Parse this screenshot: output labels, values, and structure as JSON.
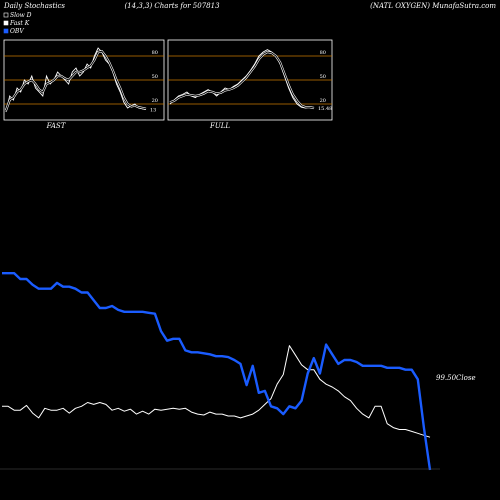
{
  "header": {
    "left": "Daily Stochastics",
    "mid": "(14,3,3) Charts for 507813",
    "right": "(NATL OXYGEN) MunafaSutra.com"
  },
  "legend": [
    {
      "label": "Slow  D",
      "color": "#000000",
      "border": "#ffffff"
    },
    {
      "label": "Fast K",
      "color": "#ffffff",
      "border": "#ffffff"
    },
    {
      "label": "OBV",
      "color": "#1a5cff",
      "border": "#1a5cff"
    }
  ],
  "colors": {
    "background": "#000000",
    "price": "#ffffff",
    "obv": "#1a5cff",
    "level": "#c87800",
    "panel_border": "#ffffff"
  },
  "chart_data": [
    {
      "type": "line",
      "panel": "FAST",
      "title": "FAST",
      "ylim": [
        0,
        100
      ],
      "ticks": [
        20,
        50,
        80
      ],
      "levels": [
        20,
        50,
        80
      ],
      "last_value_label": "13",
      "series": [
        {
          "name": "Fast K",
          "values": [
            10,
            30,
            25,
            40,
            35,
            50,
            45,
            55,
            40,
            35,
            30,
            55,
            45,
            50,
            60,
            55,
            50,
            45,
            60,
            65,
            55,
            60,
            70,
            65,
            80,
            90,
            85,
            75,
            70,
            60,
            45,
            35,
            22,
            15,
            18,
            20,
            15,
            14,
            13
          ]
        },
        {
          "name": "Slow  D",
          "values": [
            12,
            25,
            28,
            35,
            38,
            45,
            48,
            50,
            45,
            38,
            35,
            45,
            47,
            50,
            55,
            55,
            52,
            50,
            55,
            60,
            60,
            62,
            65,
            68,
            75,
            85,
            86,
            80,
            72,
            62,
            50,
            40,
            28,
            20,
            17,
            18,
            16,
            15,
            14
          ]
        }
      ]
    },
    {
      "type": "line",
      "panel": "FULL",
      "title": "FULL",
      "ylim": [
        0,
        100
      ],
      "ticks": [
        20,
        50,
        80
      ],
      "levels": [
        20,
        50,
        80
      ],
      "last_value_label": "15.48",
      "series": [
        {
          "name": "Fast K",
          "values": [
            20,
            25,
            30,
            32,
            35,
            30,
            28,
            32,
            35,
            38,
            35,
            30,
            35,
            40,
            38,
            42,
            45,
            50,
            55,
            62,
            70,
            80,
            85,
            88,
            85,
            80,
            70,
            55,
            40,
            28,
            20,
            16,
            15,
            16,
            15
          ]
        },
        {
          "name": "Slow  D",
          "values": [
            22,
            24,
            28,
            30,
            32,
            31,
            30,
            31,
            33,
            36,
            35,
            33,
            34,
            37,
            38,
            40,
            43,
            48,
            53,
            60,
            67,
            76,
            82,
            85,
            84,
            80,
            72,
            58,
            44,
            32,
            24,
            18,
            16,
            16,
            15
          ]
        }
      ]
    },
    {
      "type": "line",
      "panel": "price",
      "close_label": "99.50",
      "close_suffix": "Close",
      "series": [
        {
          "name": "price",
          "values": [
            62,
            62,
            58,
            58,
            63,
            55,
            50,
            60,
            58,
            58,
            60,
            55,
            60,
            62,
            66,
            64,
            66,
            64,
            58,
            60,
            57,
            59,
            54,
            57,
            54,
            59,
            58,
            59,
            60,
            59,
            60,
            56,
            54,
            53,
            56,
            54,
            54,
            52,
            52,
            50,
            52,
            54,
            58,
            64,
            70,
            85,
            95,
            125,
            115,
            105,
            100,
            100,
            90,
            85,
            82,
            78,
            72,
            68,
            60,
            54,
            50,
            62,
            62,
            44,
            40,
            38,
            38,
            36,
            34,
            32,
            30
          ]
        },
        {
          "name": "OBV",
          "values": [
            200,
            200,
            200,
            194,
            194,
            188,
            184,
            184,
            184,
            190,
            186,
            186,
            184,
            180,
            180,
            172,
            164,
            164,
            166,
            162,
            160,
            160,
            160,
            160,
            159,
            158,
            140,
            130,
            132,
            132,
            120,
            118,
            118,
            117,
            116,
            114,
            114,
            113,
            110,
            106,
            84,
            104,
            76,
            78,
            62,
            60,
            54,
            62,
            60,
            68,
            96,
            112,
            96,
            126,
            116,
            106,
            110,
            110,
            108,
            104,
            104,
            104,
            104,
            102,
            102,
            102,
            100,
            100,
            90,
            40,
            -4
          ]
        }
      ]
    }
  ]
}
